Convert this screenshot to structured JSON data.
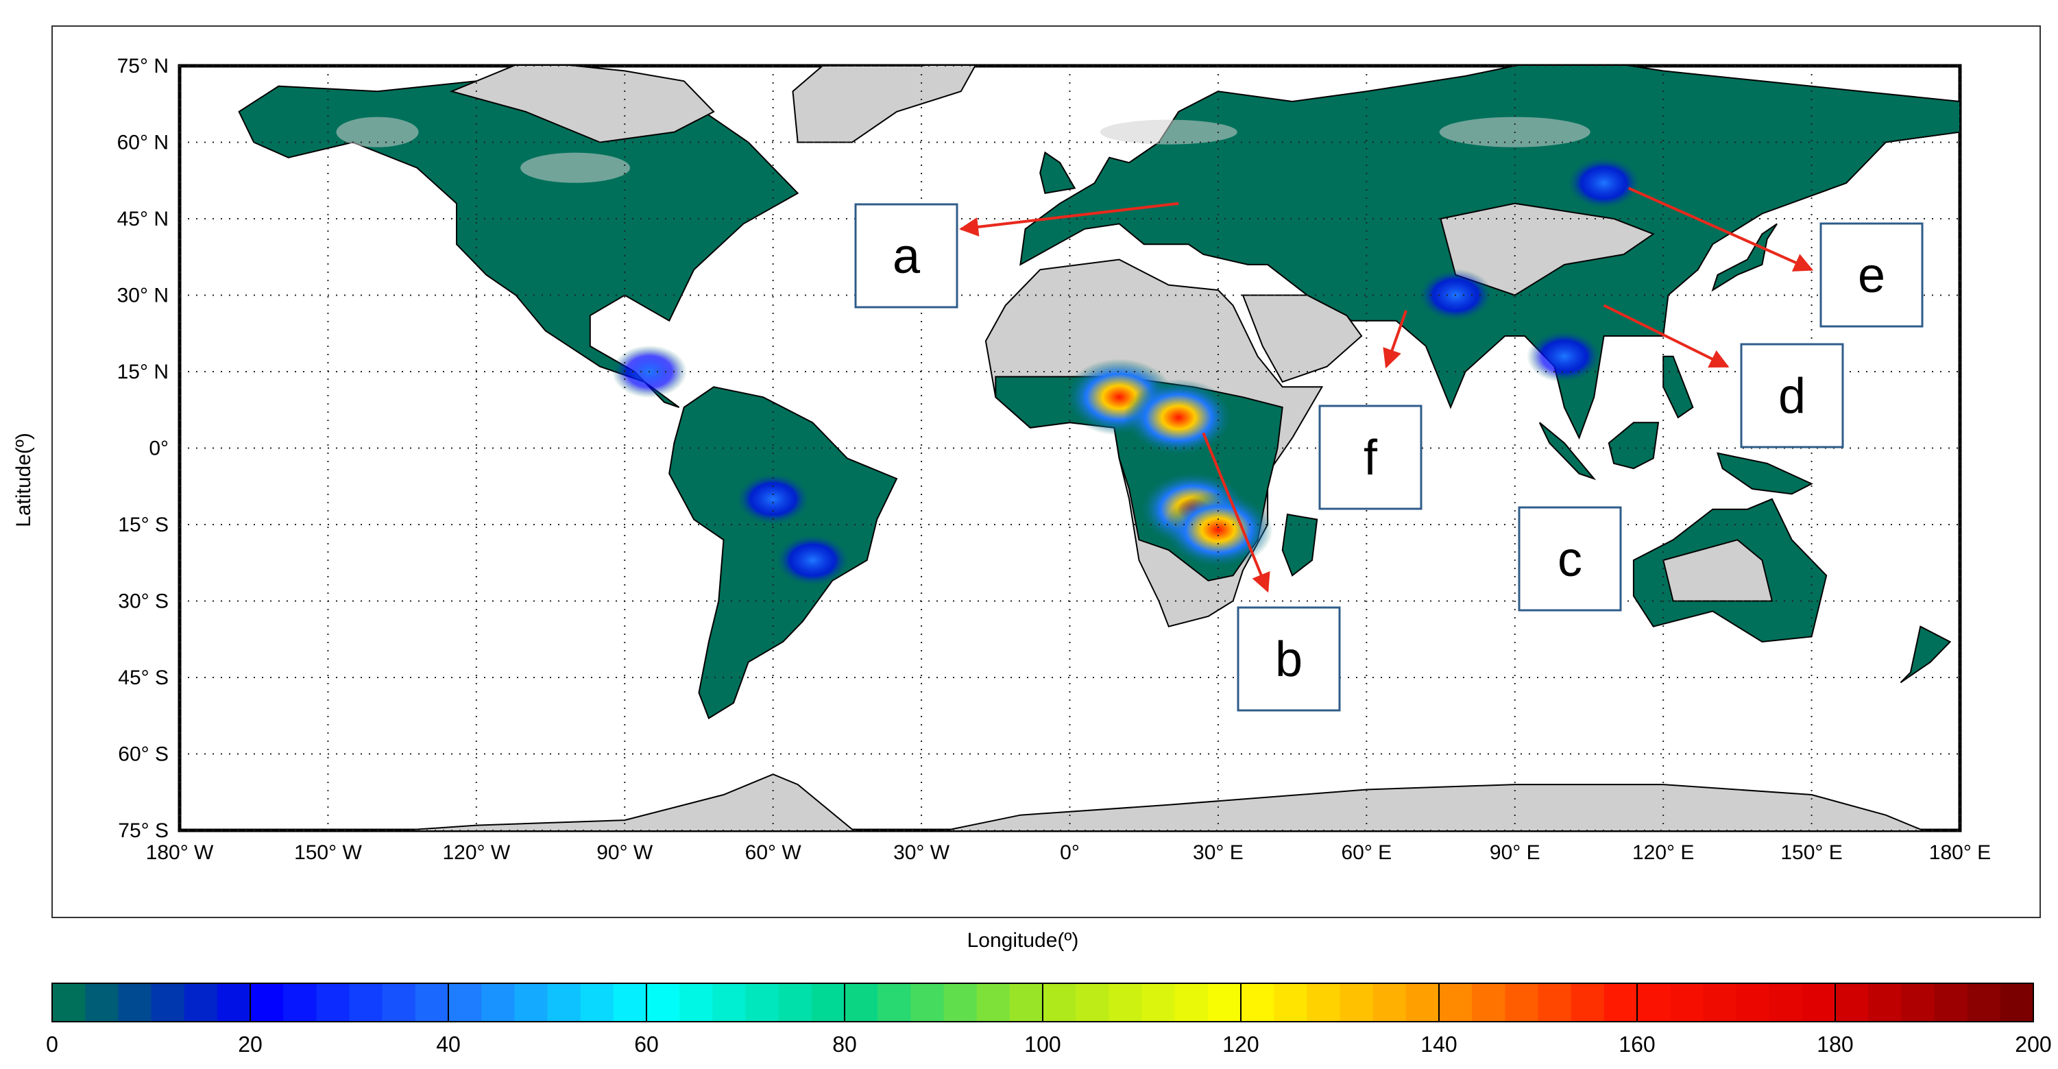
{
  "map": {
    "xlabel": "Longitude(º)",
    "ylabel": "Latitude(º)",
    "lat_ticks": [
      {
        "value": 75,
        "label": "75° N"
      },
      {
        "value": 60,
        "label": "60° N"
      },
      {
        "value": 45,
        "label": "45° N"
      },
      {
        "value": 30,
        "label": "30° N"
      },
      {
        "value": 15,
        "label": "15° N"
      },
      {
        "value": 0,
        "label": "0°"
      },
      {
        "value": -15,
        "label": "15° S"
      },
      {
        "value": -30,
        "label": "30° S"
      },
      {
        "value": -45,
        "label": "45° S"
      },
      {
        "value": -60,
        "label": "60° S"
      },
      {
        "value": -75,
        "label": "75° S"
      }
    ],
    "lon_ticks": [
      {
        "value": -180,
        "label": "180° W"
      },
      {
        "value": -150,
        "label": "150° W"
      },
      {
        "value": -120,
        "label": "120° W"
      },
      {
        "value": -90,
        "label": "90° W"
      },
      {
        "value": -60,
        "label": "60° W"
      },
      {
        "value": -30,
        "label": "30° W"
      },
      {
        "value": 0,
        "label": "0°"
      },
      {
        "value": 30,
        "label": "30° E"
      },
      {
        "value": 60,
        "label": "60° E"
      },
      {
        "value": 90,
        "label": "90° E"
      },
      {
        "value": 120,
        "label": "120° E"
      },
      {
        "value": 150,
        "label": "150° E"
      },
      {
        "value": 180,
        "label": "180° E"
      }
    ],
    "lon_range": [
      -180,
      180
    ],
    "lat_range": [
      -75,
      75
    ],
    "grid": true,
    "colors": {
      "land_no_data": "#cfcfcf",
      "land_low": "#00705a",
      "ocean": "#ffffff",
      "arrow": "#e8291c",
      "box_border": "#2f5c8a"
    },
    "hotspots": [
      {
        "lon": -60,
        "lat": -10,
        "level": 40
      },
      {
        "lon": -52,
        "lat": -22,
        "level": 50
      },
      {
        "lon": -85,
        "lat": 15,
        "level": 40
      },
      {
        "lon": 10,
        "lat": 10,
        "level": 140
      },
      {
        "lon": 22,
        "lat": 6,
        "level": 130
      },
      {
        "lon": 25,
        "lat": -12,
        "level": 170
      },
      {
        "lon": 30,
        "lat": -16,
        "level": 150
      },
      {
        "lon": 100,
        "lat": 18,
        "level": 60
      },
      {
        "lon": 108,
        "lat": 52,
        "level": 60
      },
      {
        "lon": 78,
        "lat": 30,
        "level": 50
      }
    ],
    "annotations": [
      {
        "label": "a",
        "arrow_from": [
          22,
          48
        ],
        "arrow_to": [
          -22,
          43
        ]
      },
      {
        "label": "b",
        "arrow_from": [
          27,
          3
        ],
        "arrow_to": [
          40,
          -28
        ]
      },
      {
        "label": "c",
        "arrow_from": null,
        "arrow_to": null
      },
      {
        "label": "d",
        "arrow_from": [
          108,
          28
        ],
        "arrow_to": [
          133,
          16
        ]
      },
      {
        "label": "e",
        "arrow_from": [
          113,
          51
        ],
        "arrow_to": [
          150,
          35
        ]
      },
      {
        "label": "f",
        "arrow_from": [
          68,
          27
        ],
        "arrow_to": [
          64,
          16
        ]
      }
    ]
  },
  "colorbar": {
    "ticks": [
      "0",
      "20",
      "40",
      "60",
      "80",
      "100",
      "120",
      "140",
      "160",
      "180",
      "200"
    ],
    "range": [
      0,
      200
    ],
    "stops": [
      "#00705a",
      "#0000ff",
      "#1f78ff",
      "#00ffff",
      "#00d48a",
      "#a8e61e",
      "#ffff00",
      "#ff9a00",
      "#ff1500",
      "#e00000",
      "#7a0000"
    ]
  }
}
